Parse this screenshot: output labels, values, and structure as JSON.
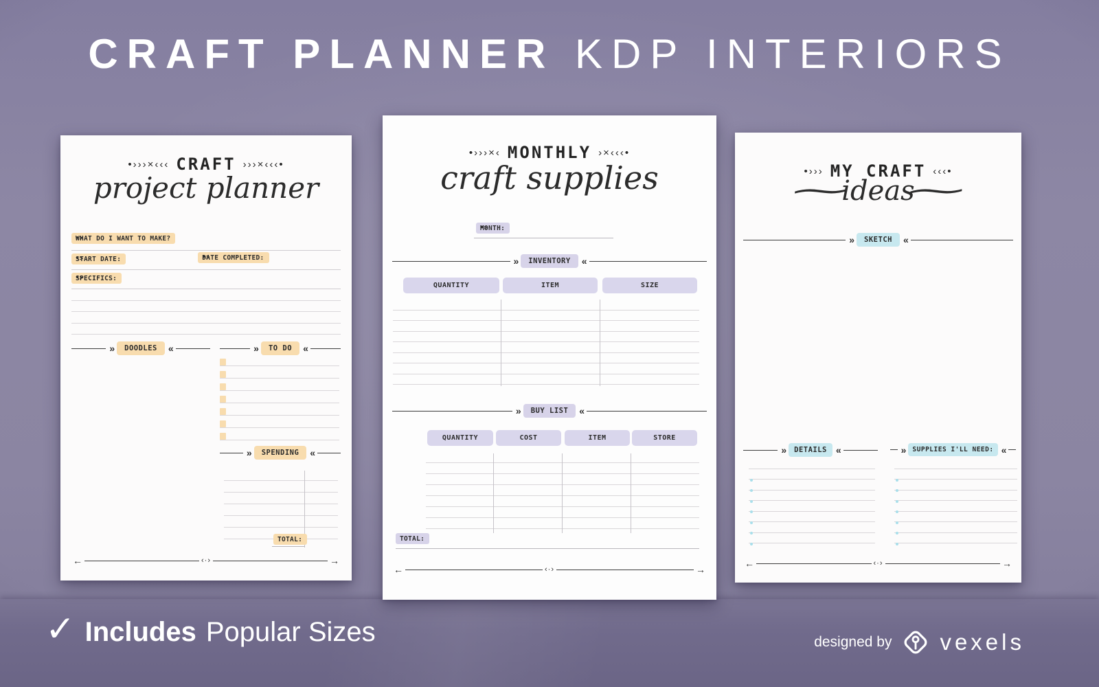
{
  "colors": {
    "background": "#8b85a2",
    "floor": "#6b6586",
    "peach": "#f8dcae",
    "lavender": "#d7d3e9",
    "blue": "#c7e8ef",
    "page": "#fcfbfb"
  },
  "deco": {
    "chev_right": "»",
    "chev_left": "«",
    "arrow_left": "←",
    "arrow_right": "→",
    "arrow_mid": "‹·›"
  },
  "hero": {
    "title_strong": "CRAFT PLANNER",
    "title_light": "KDP INTERIORS"
  },
  "page1": {
    "deco_left": "•›››×‹‹‹",
    "deco_right": "›››×‹‹‹•",
    "title": "CRAFT",
    "script": "project planner",
    "arrow_prefix": "•>",
    "field_make": "WHAT DO I WANT TO MAKE?",
    "field_start": "START DATE:",
    "field_completed": "DATE COMPLETED:",
    "field_specifics": "SPECIFICS:",
    "ruled_lines": 4,
    "doodles_label": "DOODLES",
    "todo_label": "TO DO",
    "todo_rows": 7,
    "spending_label": "SPENDING",
    "spending_rows": 6,
    "total_label": "TOTAL:"
  },
  "page2": {
    "deco_left": "•›››×‹",
    "deco_right": "›×‹‹‹•",
    "title": "MONTHLY",
    "script": "craft supplies",
    "arrow_prefix": "•>",
    "month_label": "MONTH:",
    "inventory": {
      "label": "INVENTORY",
      "col_quantity": "QUANTITY",
      "col_item": "ITEM",
      "col_size": "SIZE",
      "rows": 8
    },
    "buylist": {
      "label": "BUY LIST",
      "col_quantity": "QUANTITY",
      "col_cost": "COST",
      "col_item": "ITEM",
      "col_store": "STORE",
      "rows": 7
    },
    "total_label": "TOTAL:"
  },
  "page3": {
    "deco_left": "•›››",
    "deco_right": "‹‹‹•",
    "title": "MY CRAFT",
    "script": "ideas",
    "script_swash": "∼",
    "sketch_label": "SKETCH",
    "details_label": "DETAILS",
    "details_rows": 8,
    "supplies_label": "SUPPLIES I'LL NEED:",
    "supplies_rows": 8
  },
  "footer": {
    "check": "✓",
    "includes_strong": "Includes",
    "includes_light": "Popular Sizes",
    "designed_by": "designed by",
    "brand": "vexels"
  }
}
